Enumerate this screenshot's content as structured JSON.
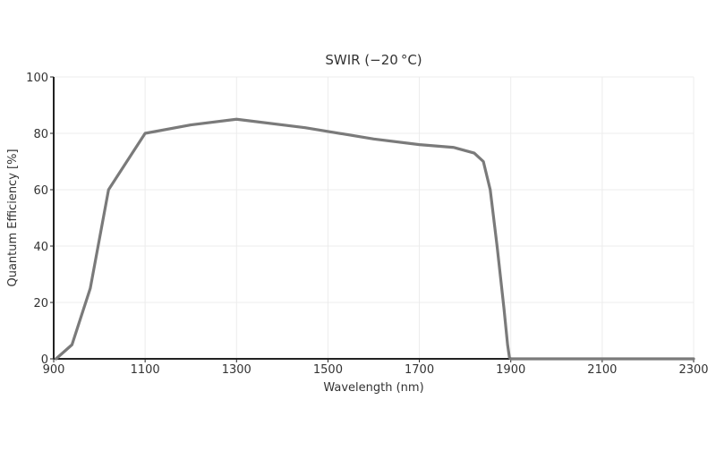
{
  "chart_data": {
    "type": "line",
    "title": "SWIR (−20 °C)",
    "xlabel": "Wavelength (nm)",
    "ylabel": "Quantum Efficiency [%]",
    "xlim": [
      900,
      2300
    ],
    "ylim": [
      0,
      100
    ],
    "xticks": [
      900,
      1100,
      1300,
      1500,
      1700,
      1900,
      2100,
      2300
    ],
    "yticks": [
      0,
      20,
      40,
      60,
      80,
      100
    ],
    "grid": true,
    "series": [
      {
        "color": "#7a7a7a",
        "x": [
          905,
          940,
          980,
          1020,
          1100,
          1200,
          1300,
          1450,
          1600,
          1700,
          1775,
          1820,
          1840,
          1855,
          1870,
          1885,
          1893,
          1897,
          1900,
          2000,
          2100,
          2200,
          2300
        ],
        "y": [
          0,
          5,
          25,
          60,
          80,
          83,
          85,
          82,
          78,
          76,
          75,
          73,
          70,
          60,
          40,
          18,
          5,
          0.5,
          0,
          0,
          0,
          0,
          0
        ]
      }
    ]
  }
}
